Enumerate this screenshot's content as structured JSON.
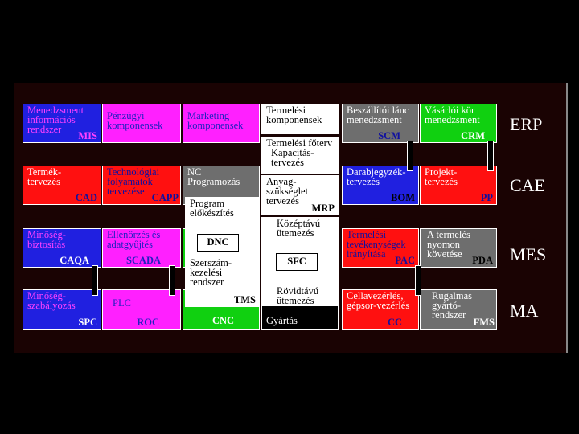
{
  "labels": [
    "ERP",
    "CAE",
    "MES",
    "MA"
  ],
  "boxes": [
    {
      "text": "Menedzsment információs rendszer",
      "abbr": "MIS"
    },
    {
      "text": "Pénzügyi komponensek"
    },
    {
      "text": "Marketing komponensek"
    },
    {
      "text": "Termelési komponensek"
    },
    {
      "text": "Beszállítói lánc menedzsment",
      "abbr": "SCM"
    },
    {
      "text": "Vásárlói kör menedzsment",
      "abbr": "CRM"
    },
    {
      "text": "Termék-tervezés",
      "abbr": "CAD"
    },
    {
      "text": "Technológiai folyamatok tervezése",
      "abbr": "CAPP"
    },
    {
      "text": "NC Programozás"
    },
    {
      "text": "Darabjegyzék-tervezés",
      "abbr": "BOM"
    },
    {
      "text": "Projekt-tervezés",
      "abbr": "PP"
    },
    {
      "text": "Minőség-biztosítás",
      "abbr": "CAQA"
    },
    {
      "text": "Ellenőrzés és adatgyűjtés",
      "abbr": "SCADA"
    },
    {
      "text": "Termelési tevékenységek irányítása",
      "abbr": "PAC"
    },
    {
      "text": "A termelés nyomon követése",
      "abbr": "PDA"
    },
    {
      "text": "Minőség-szabályozás",
      "abbr": "SPC"
    },
    {
      "text": "PLC",
      "abbr": "ROC"
    },
    {
      "text": "CNC"
    },
    {
      "text": "Gyártás"
    },
    {
      "text": "Cellavezérlés, gépsor-vezérlés",
      "abbr": "CC"
    },
    {
      "text": "Rugalmas gyártó-rendszer",
      "abbr": "FMS"
    }
  ],
  "center": [
    {
      "text": "Termelési főterv"
    },
    {
      "text": "Kapacitás-tervezés"
    },
    {
      "text": "Anyag-szükséglet tervezés",
      "abbr": "MRP"
    },
    {
      "text": "Középtávú ütemezés"
    },
    {
      "text": "SFC"
    },
    {
      "text": "Rövidtávú ütemezés"
    }
  ],
  "tool": [
    {
      "text": "Program előkészítés"
    },
    {
      "text": "DNC"
    },
    {
      "text": "Szerszám-kezelési rendszer",
      "abbr": "TMS"
    }
  ]
}
